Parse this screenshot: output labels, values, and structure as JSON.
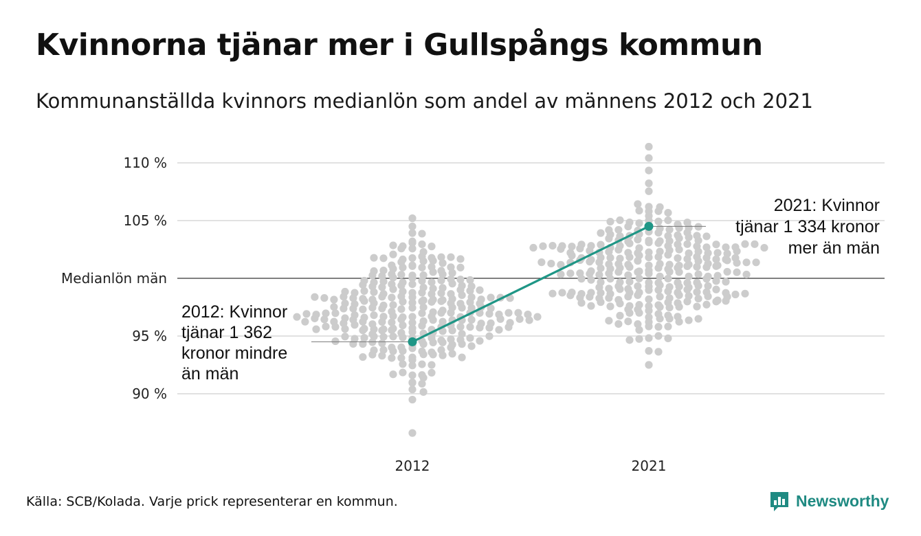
{
  "header": {
    "title": "Kvinnorna tjänar mer i Gullspångs kommun",
    "subtitle": "Kommunanställda kvinnors medianlön som andel av männens 2012 och 2021"
  },
  "footer": {
    "source": "Källa: SCB/Kolada. Varje prick representerar en kommun.",
    "brand": "Newsworthy"
  },
  "colors": {
    "dots": "#cccccc",
    "highlight": "#1f9686",
    "grid": "#e1e1e1",
    "baseline": "#333333",
    "brand": "#1f8a82"
  },
  "icons": {
    "brand_logo": "bar-chart-speech-icon"
  },
  "chart_data": {
    "type": "scatter",
    "title": "Kvinnorna tjänar mer i Gullspångs kommun",
    "subtitle": "Kommunanställda kvinnors medianlön som andel av männens 2012 och 2021",
    "categories": [
      "2012",
      "2021"
    ],
    "y_ticks": [
      {
        "value": 90,
        "label": "90 %"
      },
      {
        "value": 95,
        "label": "95 %"
      },
      {
        "value": 100,
        "label": "Medianlön män"
      },
      {
        "value": 105,
        "label": "105 %"
      },
      {
        "value": 110,
        "label": "110 %"
      }
    ],
    "ylim": [
      86,
      111.5
    ],
    "grid": true,
    "reference_line": {
      "value": 100,
      "label": "Medianlön män"
    },
    "distributions": [
      {
        "category": "2012",
        "count": 290,
        "median": 97.2,
        "min": 86.6,
        "max": 105.2
      },
      {
        "category": "2021",
        "count": 290,
        "median": 100.6,
        "min": 92.5,
        "max": 111.4
      }
    ],
    "highlight": {
      "name": "Gullspång",
      "values": [
        {
          "category": "2012",
          "value": 94.5
        },
        {
          "category": "2021",
          "value": 104.5
        }
      ]
    },
    "annotations": [
      {
        "category": "2012",
        "lines": [
          "2012: Kvinnor",
          "tjänar 1 362",
          "kronor mindre",
          "än män"
        ]
      },
      {
        "category": "2021",
        "lines": [
          "2021: Kvinnor",
          "tjänar 1 334 kronor",
          "mer än män"
        ]
      }
    ]
  }
}
